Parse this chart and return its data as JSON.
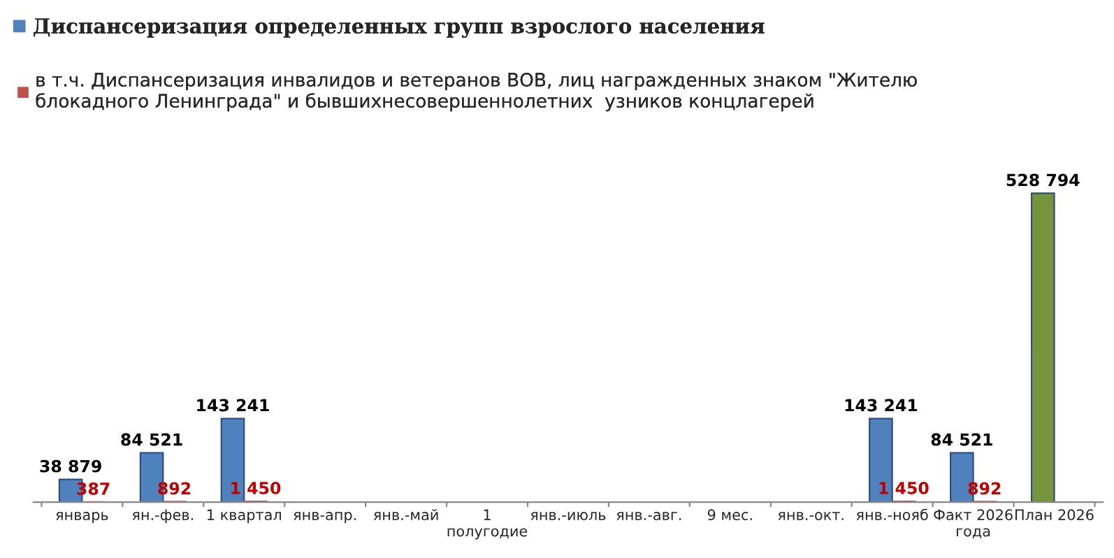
{
  "chart_data": {
    "type": "bar",
    "categories": [
      "январь",
      "ян.-фев.",
      "1 квартал",
      "янв-апр.",
      "янв.-май",
      "1\nполугодие",
      "янв.-июль",
      "янв.-авг.",
      "9 мес.",
      "янв.-окт.",
      "янв.-нояб",
      "Факт 2026\nгода",
      "План 2026"
    ],
    "series": [
      {
        "name": "Диспансеризация определенных групп взрослого населения",
        "color": "#4f81bd",
        "colors": [
          "#4f81bd",
          "#4f81bd",
          "#4f81bd",
          null,
          null,
          null,
          null,
          null,
          null,
          null,
          "#4f81bd",
          "#4f81bd",
          "#77933c"
        ],
        "values": [
          38879,
          84521,
          143241,
          null,
          null,
          null,
          null,
          null,
          null,
          null,
          143241,
          84521,
          528794
        ],
        "value_labels": [
          "38 879",
          "84 521",
          "143 241",
          null,
          null,
          null,
          null,
          null,
          null,
          null,
          "143 241",
          "84 521",
          "528 794"
        ]
      },
      {
        "name": "в т.ч. Диспансеризация инвалидов и ветеранов ВОВ, лиц награжденных знаком \"Жителю\nблокадного Ленинграда\" и бывшихнесовершеннолетних  узников концлагерей",
        "color": "#c0504d",
        "values": [
          387,
          892,
          1450,
          null,
          null,
          null,
          null,
          null,
          null,
          null,
          1450,
          892,
          null
        ],
        "value_labels": [
          "387",
          "892",
          "1 450",
          null,
          null,
          null,
          null,
          null,
          null,
          null,
          "1 450",
          "892",
          null
        ]
      }
    ],
    "legend": "top left"
  }
}
